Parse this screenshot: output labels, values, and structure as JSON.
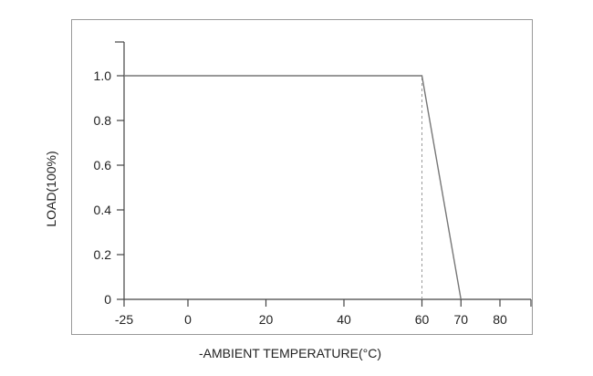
{
  "chart_data": {
    "type": "line",
    "title": "",
    "xlabel": "-AMBIENT TEMPERATURE(°C)",
    "ylabel": "LOAD(100%)",
    "x_ticks": [
      -25,
      0,
      20,
      40,
      60,
      70,
      80
    ],
    "x_tick_labels": [
      "-25",
      "0",
      "20",
      "40",
      "60",
      "70",
      "80"
    ],
    "y_ticks": [
      0,
      0.2,
      0.4,
      0.6,
      0.8,
      1.0
    ],
    "y_tick_labels": [
      "0",
      "0.2",
      "0.4",
      "0.6",
      "0.8",
      "1.0"
    ],
    "xlim": [
      -25,
      82
    ],
    "ylim": [
      0,
      1.15
    ],
    "grid": false,
    "series": [
      {
        "x": [
          -25,
          60,
          70
        ],
        "y": [
          1.0,
          1.0,
          0
        ]
      }
    ],
    "reference_lines": [
      {
        "orientation": "vertical",
        "x": 60,
        "y_from": 0,
        "y_to": 1.0,
        "style": "dashed"
      }
    ],
    "colors": {
      "line": "#777777",
      "axis": "#444444",
      "frame": "#999999",
      "reference": "#999999"
    }
  }
}
